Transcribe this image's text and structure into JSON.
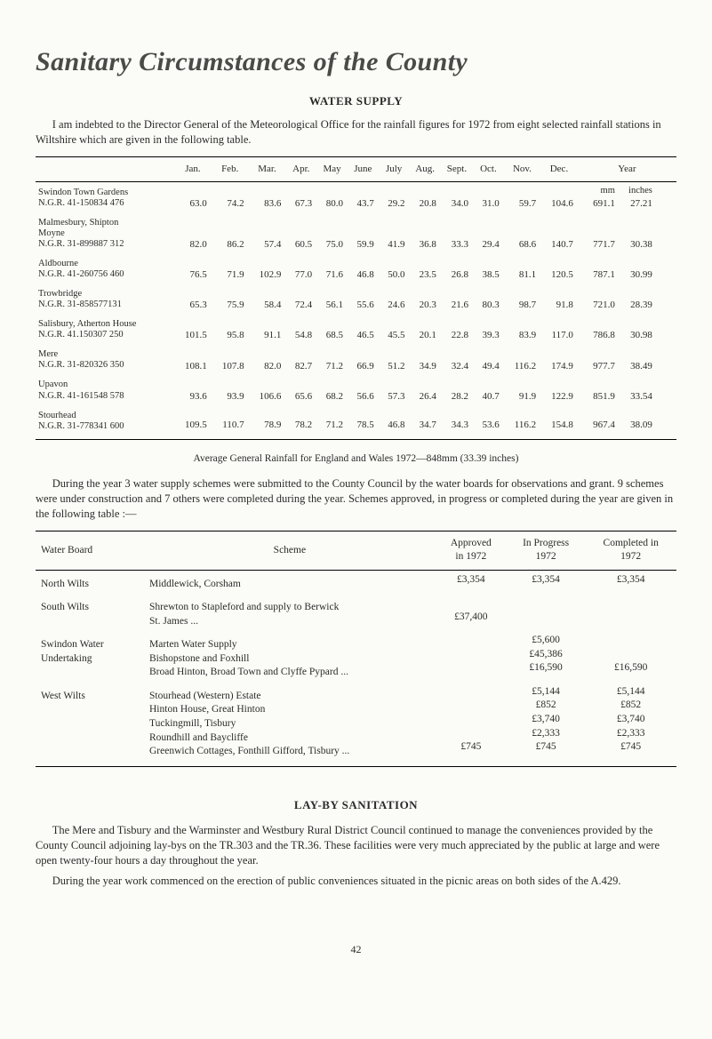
{
  "title": "Sanitary Circumstances of the County",
  "subtitle": "WATER SUPPLY",
  "intro": "I am indebted to the Director General of the Meteorological Office for the rainfall figures for 1972 from eight selected rainfall stations in Wiltshire which are given in the following table.",
  "rainfall_table": {
    "months": [
      "Jan.",
      "Feb.",
      "Mar.",
      "Apr.",
      "May",
      "June",
      "July",
      "Aug.",
      "Sept.",
      "Oct.",
      "Nov.",
      "Dec."
    ],
    "year_head": "Year",
    "mm_label": "mm",
    "inches_label": "inches",
    "stations": [
      {
        "name": "Swindon Town Gardens\nN.G.R. 41-150834 476",
        "values": [
          63.0,
          74.2,
          83.6,
          67.3,
          80.0,
          43.7,
          29.2,
          20.8,
          34.0,
          31.0,
          59.7,
          104.6
        ],
        "year_mm": 691.1,
        "year_in": 27.21
      },
      {
        "name": "Malmesbury, Shipton\n  Moyne\nN.G.R. 31-899887 312",
        "values": [
          82.0,
          86.2,
          57.4,
          60.5,
          75.0,
          59.9,
          41.9,
          36.8,
          33.3,
          29.4,
          68.6,
          140.7
        ],
        "year_mm": 771.7,
        "year_in": 30.38
      },
      {
        "name": "Aldbourne\nN.G.R. 41-260756 460",
        "values": [
          76.5,
          71.9,
          102.9,
          77.0,
          71.6,
          46.8,
          50.0,
          23.5,
          26.8,
          38.5,
          81.1,
          120.5
        ],
        "year_mm": 787.1,
        "year_in": 30.99
      },
      {
        "name": "Trowbridge\nN.G.R. 31-858577131",
        "values": [
          65.3,
          75.9,
          58.4,
          72.4,
          56.1,
          55.6,
          24.6,
          20.3,
          21.6,
          80.3,
          98.7,
          91.8
        ],
        "year_mm": 721.0,
        "year_in": 28.39
      },
      {
        "name": "Salisbury, Atherton House\nN.G.R. 41.150307 250",
        "values": [
          101.5,
          95.8,
          91.1,
          54.8,
          68.5,
          46.5,
          45.5,
          20.1,
          22.8,
          39.3,
          83.9,
          117.0
        ],
        "year_mm": 786.8,
        "year_in": 30.98
      },
      {
        "name": "Mere\nN.G.R. 31-820326 350",
        "values": [
          108.1,
          107.8,
          82.0,
          82.7,
          71.2,
          66.9,
          51.2,
          34.9,
          32.4,
          49.4,
          116.2,
          174.9
        ],
        "year_mm": 977.7,
        "year_in": 38.49
      },
      {
        "name": "Upavon\nN.G.R. 41-161548 578",
        "values": [
          93.6,
          93.9,
          106.6,
          65.6,
          68.2,
          56.6,
          57.3,
          26.4,
          28.2,
          40.7,
          91.9,
          122.9
        ],
        "year_mm": 851.9,
        "year_in": 33.54
      },
      {
        "name": "Stourhead\nN.G.R. 31-778341 600",
        "values": [
          109.5,
          110.7,
          78.9,
          78.2,
          71.2,
          78.5,
          46.8,
          34.7,
          34.3,
          53.6,
          116.2,
          154.8
        ],
        "year_mm": 967.4,
        "year_in": 38.09
      }
    ]
  },
  "avg_caption": "Average General Rainfall for England and Wales 1972—848mm (33.39 inches)",
  "schemes_intro": "During the year 3 water supply schemes were submitted to the County Council by the water boards for observations and grant.  9 schemes were under construction and 7 others were completed during the year.  Schemes approved, in progress or completed during the year are given in the following table :—",
  "schemes_table": {
    "headers": {
      "board": "Water Board",
      "scheme": "Scheme",
      "approved": "Approved\nin 1972",
      "progress": "In Progress\n1972",
      "completed": "Completed in\n1972"
    },
    "rows": [
      {
        "board": "North Wilts",
        "scheme_lines": [
          "Middlewick, Corsham"
        ],
        "approved": [
          "£3,354"
        ],
        "progress": [
          "£3,354"
        ],
        "completed": [
          "£3,354"
        ]
      },
      {
        "board": "South Wilts",
        "scheme_lines": [
          "Shrewton to Stapleford and supply to Berwick",
          "  St. James ..."
        ],
        "approved": [
          "",
          "£37,400"
        ],
        "progress": [
          "",
          ""
        ],
        "completed": [
          "",
          ""
        ]
      },
      {
        "board": "Swindon Water\n  Undertaking",
        "scheme_lines": [
          "Marten Water Supply",
          "Bishopstone and Foxhill",
          "Broad Hinton, Broad Town and Clyffe Pypard ..."
        ],
        "approved": [
          "",
          "",
          ""
        ],
        "progress": [
          "£5,600",
          "£45,386",
          "£16,590"
        ],
        "completed": [
          "",
          "",
          "£16,590"
        ]
      },
      {
        "board": "West Wilts",
        "scheme_lines": [
          "Stourhead (Western) Estate",
          "Hinton House, Great Hinton",
          "Tuckingmill, Tisbury",
          "Roundhill and Baycliffe",
          "Greenwich Cottages, Fonthill Gifford, Tisbury  ..."
        ],
        "approved": [
          "",
          "",
          "",
          "",
          "£745"
        ],
        "progress": [
          "£5,144",
          "£852",
          "£3,740",
          "£2,333",
          "£745"
        ],
        "completed": [
          "£5,144",
          "£852",
          "£3,740",
          "£2,333",
          "£745"
        ]
      }
    ]
  },
  "layby": {
    "title": "LAY-BY SANITATION",
    "p1": "The Mere and Tisbury and the Warminster and Westbury Rural District Council continued to manage the conveniences provided by the County Council adjoining lay-bys on the TR.303 and the TR.36.  These facilities were very much appreciated by the public at large and were open twenty-four hours a day throughout the year.",
    "p2": "During the year work commenced on the erection of public conveniences situated in the picnic areas on both sides of the A.429."
  },
  "page_number": "42"
}
